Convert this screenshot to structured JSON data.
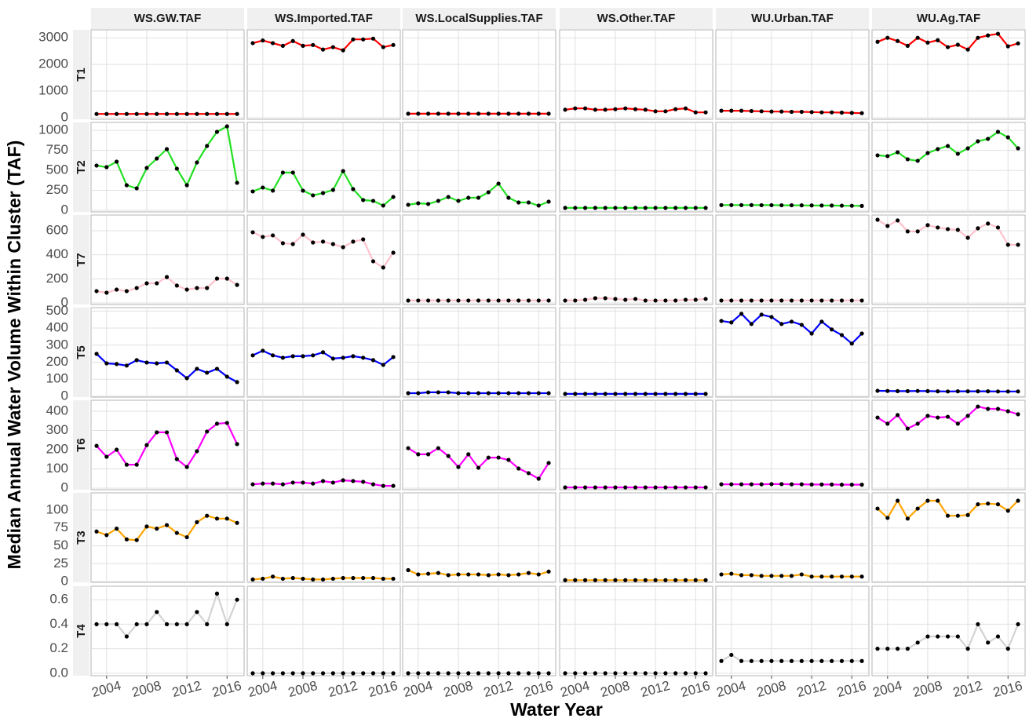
{
  "chart_data": {
    "type": "line",
    "x_label": "Water Year",
    "y_label": "Median Annual Water Volume Within Cluster (TAF)",
    "columns": [
      "WS.GW.TAF",
      "WS.Imported.TAF",
      "WS.LocalSupplies.TAF",
      "WS.Other.TAF",
      "WU.Urban.TAF",
      "WU.Ag.TAF"
    ],
    "x": [
      2003,
      2004,
      2005,
      2006,
      2007,
      2008,
      2009,
      2010,
      2011,
      2012,
      2013,
      2014,
      2015,
      2016,
      2017
    ],
    "xlim": [
      2002.45,
      2017.7
    ],
    "xticks": [
      2004,
      2008,
      2012,
      2016
    ],
    "grid": true,
    "marker_color": "#000000",
    "rows": [
      {
        "name": "T1",
        "color": "#ff0000",
        "ylim": [
          -60,
          3300
        ],
        "yticks": [
          0,
          1000,
          2000,
          3000
        ],
        "values": [
          [
            140,
            140,
            140,
            140,
            140,
            140,
            140,
            140,
            140,
            140,
            140,
            140,
            140,
            140,
            140
          ],
          [
            2800,
            2900,
            2800,
            2700,
            2880,
            2700,
            2730,
            2560,
            2650,
            2530,
            2940,
            2940,
            2970,
            2650,
            2730
          ],
          [
            150,
            150,
            150,
            150,
            150,
            150,
            150,
            150,
            150,
            150,
            150,
            150,
            150,
            150,
            150
          ],
          [
            300,
            350,
            350,
            300,
            300,
            320,
            350,
            320,
            300,
            240,
            240,
            320,
            350,
            200,
            200
          ],
          [
            260,
            260,
            260,
            250,
            240,
            230,
            230,
            220,
            220,
            210,
            200,
            200,
            190,
            180,
            170
          ],
          [
            2850,
            3000,
            2880,
            2700,
            3000,
            2820,
            2910,
            2650,
            2740,
            2560,
            3000,
            3090,
            3150,
            2680,
            2790
          ]
        ]
      },
      {
        "name": "T2",
        "color": "#22e022",
        "ylim": [
          -20,
          1100
        ],
        "yticks": [
          0,
          250,
          500,
          750,
          1000
        ],
        "values": [
          [
            560,
            540,
            609,
            314,
            275,
            530,
            648,
            766,
            521,
            314,
            599,
            805,
            982,
            1051,
            344
          ],
          [
            236,
            285,
            246,
            472,
            472,
            246,
            187,
            216,
            255,
            491,
            265,
            128,
            118,
            59,
            167
          ],
          [
            69,
            88,
            79,
            118,
            167,
            118,
            157,
            157,
            226,
            334,
            157,
            98,
            98,
            59,
            108
          ],
          [
            30,
            30,
            30,
            30,
            30,
            30,
            30,
            30,
            30,
            30,
            30,
            30,
            30,
            30,
            30
          ],
          [
            65,
            65,
            65,
            65,
            64,
            64,
            63,
            63,
            62,
            61,
            60,
            60,
            58,
            57,
            55
          ],
          [
            688,
            678,
            727,
            639,
            619,
            717,
            766,
            805,
            707,
            776,
            864,
            894,
            982,
            913,
            776
          ]
        ]
      },
      {
        "name": "T7",
        "color": "#ffc0cb",
        "ylim": [
          -13,
          730
        ],
        "yticks": [
          0,
          200,
          400,
          600
        ],
        "values": [
          [
            98,
            85,
            111,
            98,
            124,
            163,
            163,
            215,
            144,
            111,
            124,
            124,
            202,
            202,
            150
          ],
          [
            587,
            548,
            561,
            496,
            489,
            567,
            502,
            509,
            489,
            463,
            509,
            528,
            346,
            294,
            417
          ],
          [
            20,
            20,
            20,
            20,
            20,
            20,
            20,
            20,
            20,
            20,
            20,
            20,
            20,
            20,
            20
          ],
          [
            20,
            20,
            26,
            39,
            39,
            33,
            26,
            33,
            20,
            20,
            20,
            20,
            26,
            26,
            33
          ],
          [
            20,
            20,
            20,
            20,
            20,
            20,
            20,
            20,
            20,
            20,
            20,
            20,
            20,
            20,
            20
          ],
          [
            691,
            639,
            685,
            594,
            594,
            646,
            626,
            613,
            607,
            541,
            620,
            659,
            626,
            483,
            483
          ]
        ]
      },
      {
        "name": "T5",
        "color": "#0000ff",
        "ylim": [
          -5,
          520
        ],
        "yticks": [
          0,
          100,
          200,
          300,
          400,
          500
        ],
        "values": [
          [
            249,
            193,
            189,
            180,
            212,
            198,
            193,
            198,
            152,
            106,
            161,
            138,
            161,
            115,
            83
          ],
          [
            240,
            267,
            240,
            226,
            235,
            235,
            240,
            258,
            221,
            226,
            235,
            226,
            212,
            184,
            230
          ],
          [
            18,
            18,
            23,
            23,
            23,
            18,
            18,
            18,
            18,
            18,
            18,
            18,
            18,
            18,
            18
          ],
          [
            14,
            14,
            14,
            14,
            14,
            14,
            14,
            14,
            14,
            14,
            14,
            14,
            14,
            14,
            14
          ],
          [
            442,
            433,
            484,
            424,
            479,
            465,
            424,
            438,
            419,
            368,
            438,
            392,
            359,
            309,
            368
          ],
          [
            32,
            31,
            30,
            30,
            31,
            30,
            29,
            28,
            29,
            29,
            29,
            29,
            28,
            28,
            28
          ]
        ]
      },
      {
        "name": "T6",
        "color": "#ff00ff",
        "ylim": [
          -8,
          457
        ],
        "yticks": [
          0,
          100,
          200,
          300,
          400
        ],
        "values": [
          [
            220,
            163,
            200,
            122,
            122,
            224,
            290,
            290,
            151,
            110,
            192,
            294,
            335,
            339,
            229
          ],
          [
            20,
            24,
            24,
            20,
            29,
            29,
            24,
            37,
            29,
            41,
            37,
            33,
            20,
            12,
            12
          ],
          [
            208,
            176,
            176,
            208,
            167,
            110,
            176,
            106,
            159,
            159,
            147,
            102,
            78,
            49,
            131
          ],
          [
            4,
            4,
            4,
            4,
            4,
            4,
            4,
            4,
            4,
            4,
            4,
            4,
            4,
            4,
            4
          ],
          [
            20,
            20,
            20,
            20,
            20,
            21,
            21,
            20,
            20,
            19,
            19,
            19,
            18,
            18,
            18
          ],
          [
            367,
            335,
            380,
            310,
            335,
            376,
            367,
            371,
            335,
            376,
            424,
            412,
            412,
            400,
            384
          ]
        ]
      },
      {
        "name": "T3",
        "color": "#ffa500",
        "ylim": [
          -1,
          124
        ],
        "yticks": [
          0,
          25,
          50,
          75,
          100
        ],
        "values": [
          [
            70,
            65,
            74,
            59,
            58,
            77,
            74,
            79,
            68,
            62,
            83,
            92,
            88,
            88,
            82
          ],
          [
            3,
            4,
            7,
            4,
            5,
            4,
            3,
            3,
            4,
            5,
            5,
            5,
            5,
            4,
            4
          ],
          [
            16,
            10,
            11,
            12,
            9,
            10,
            10,
            10,
            9,
            10,
            9,
            10,
            12,
            10,
            14
          ],
          [
            2,
            2,
            2,
            2,
            2,
            2,
            2,
            2,
            2,
            2,
            2,
            2,
            2,
            2,
            2
          ],
          [
            10,
            11,
            9,
            9,
            8,
            8,
            8,
            8,
            10,
            7,
            7,
            7,
            7,
            7,
            7
          ],
          [
            102,
            89,
            113,
            88,
            102,
            113,
            113,
            92,
            92,
            93,
            108,
            109,
            108,
            99,
            113
          ]
        ]
      },
      {
        "name": "T4",
        "color": "#d3d3d3",
        "ylim": [
          -0.02,
          0.71
        ],
        "yticks": [
          {
            "value": 0,
            "label": "0.0"
          },
          0.2,
          0.4,
          0.6
        ],
        "values": [
          [
            0.4,
            0.4,
            0.4,
            0.3,
            0.4,
            0.4,
            0.5,
            0.4,
            0.4,
            0.4,
            0.5,
            0.4,
            0.65,
            0.4,
            0.6
          ],
          [
            0,
            0,
            0,
            0,
            0,
            0,
            0,
            0,
            0,
            0,
            0,
            0,
            0,
            0,
            0
          ],
          [
            0,
            0,
            0,
            0,
            0,
            0,
            0,
            0,
            0,
            0,
            0,
            0,
            0,
            0,
            0
          ],
          [
            0,
            0,
            0,
            0,
            0,
            0,
            0,
            0,
            0,
            0,
            0,
            0,
            0,
            0,
            0
          ],
          [
            0.1,
            0.15,
            0.1,
            0.1,
            0.1,
            0.1,
            0.1,
            0.1,
            0.1,
            0.1,
            0.1,
            0.1,
            0.1,
            0.1,
            0.1
          ],
          [
            0.2,
            0.2,
            0.2,
            0.2,
            0.25,
            0.3,
            0.3,
            0.3,
            0.3,
            0.2,
            0.4,
            0.25,
            0.3,
            0.2,
            0.4
          ]
        ]
      }
    ]
  }
}
